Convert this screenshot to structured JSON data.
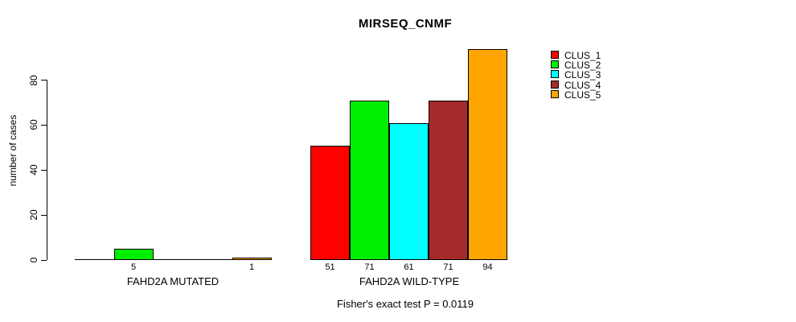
{
  "chart_data": {
    "type": "bar",
    "title": "MIRSEQ_CNMF",
    "xlabel": "",
    "ylabel": "number of cases",
    "ylim": [
      0,
      94
    ],
    "yticks": [
      0,
      20,
      40,
      60,
      80
    ],
    "grid": false,
    "legend_position": "right",
    "categories": [
      "FAHD2A MUTATED",
      "FAHD2A WILD-TYPE"
    ],
    "series": [
      {
        "name": "CLUS_1",
        "color": "#FF0000",
        "values": [
          0,
          51
        ]
      },
      {
        "name": "CLUS_2",
        "color": "#00EE00",
        "values": [
          5,
          71
        ]
      },
      {
        "name": "CLUS_3",
        "color": "#00FFFF",
        "values": [
          0,
          61
        ]
      },
      {
        "name": "CLUS_4",
        "color": "#A52A2A",
        "values": [
          0,
          71
        ]
      },
      {
        "name": "CLUS_5",
        "color": "#FFA500",
        "values": [
          1,
          94
        ]
      }
    ],
    "bar_value_labels": [
      [
        "",
        "5",
        "",
        "",
        "1"
      ],
      [
        "51",
        "71",
        "61",
        "71",
        "94"
      ]
    ],
    "annotation": "Fisher's exact test P = 0.0119"
  }
}
